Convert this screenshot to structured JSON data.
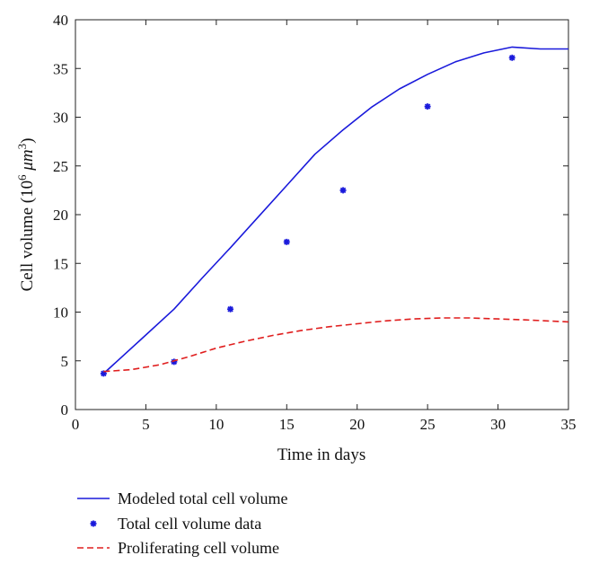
{
  "chart_data": {
    "type": "line",
    "xlabel": "Time in days",
    "ylabel": "Cell volume (10⁶ μm³)",
    "ylabel_parts": {
      "prefix": "Cell volume (10",
      "exp1": "6",
      "unit": " μm",
      "exp2": "3",
      "suffix": ")"
    },
    "xlim": [
      0,
      35
    ],
    "ylim": [
      0,
      40
    ],
    "x_ticks": [
      0,
      5,
      10,
      15,
      20,
      25,
      30,
      35
    ],
    "y_ticks": [
      0,
      5,
      10,
      15,
      20,
      25,
      30,
      35,
      40
    ],
    "grid": false,
    "legend_position": "below",
    "series": [
      {
        "name": "Modeled total cell volume",
        "style": "solid-line",
        "color": "#1a1adb",
        "x": [
          2,
          4.5,
          7,
          9,
          11,
          13,
          15,
          17,
          19,
          21,
          23,
          25,
          27,
          29,
          31,
          33,
          35
        ],
        "y": [
          3.7,
          7.0,
          10.3,
          13.5,
          16.6,
          19.8,
          23.0,
          26.2,
          28.7,
          31.0,
          32.9,
          34.4,
          35.7,
          36.6,
          37.2,
          37.0,
          37.0
        ]
      },
      {
        "name": "Total cell volume data",
        "style": "markers",
        "marker": "asterisk",
        "color": "#1a1adb",
        "x": [
          2,
          7,
          11,
          15,
          19,
          25,
          31
        ],
        "y": [
          3.7,
          4.9,
          10.3,
          17.2,
          22.5,
          31.1,
          36.1
        ]
      },
      {
        "name": "Proliferating cell volume",
        "style": "dashed-line",
        "color": "#e01e1e",
        "x": [
          2,
          4,
          6,
          8,
          10,
          12,
          14,
          16,
          18,
          20,
          22,
          24,
          26,
          28,
          30,
          32,
          35
        ],
        "y": [
          3.9,
          4.1,
          4.6,
          5.4,
          6.3,
          7.0,
          7.6,
          8.1,
          8.5,
          8.8,
          9.1,
          9.3,
          9.4,
          9.4,
          9.3,
          9.2,
          9.0
        ]
      }
    ]
  }
}
